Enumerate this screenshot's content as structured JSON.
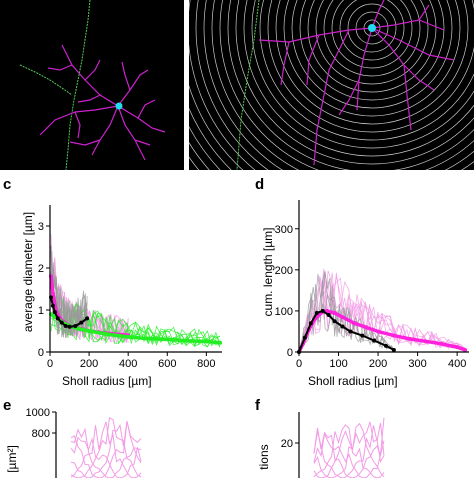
{
  "panels": {
    "c": {
      "letter": "c",
      "xlabel": "Sholl radius [µm]",
      "ylabel": "average diameter [µm]"
    },
    "d": {
      "letter": "d",
      "xlabel": "Sholl radius [µm]",
      "ylabel": "cum. length [µm]"
    },
    "e": {
      "letter": "e",
      "ylabel_partial": "[µm²]"
    },
    "f": {
      "letter": "f",
      "ylabel_partial": "tions"
    }
  },
  "colors": {
    "magenta": "#ff22dd",
    "pink_light": "#f39be6",
    "green": "#22ee22",
    "gray": "#999999",
    "black": "#000000",
    "cyan": "#22ddee",
    "dendrite": "#cc22cc",
    "axon": "#55cc55"
  },
  "chart_data": [
    {
      "id": "c",
      "type": "line",
      "xlabel": "Sholl radius [µm]",
      "ylabel": "average diameter [µm]",
      "xlim": [
        0,
        880
      ],
      "ylim": [
        0,
        3.5
      ],
      "xticks": [
        0,
        200,
        400,
        600,
        800
      ],
      "yticks": [
        0,
        1,
        2,
        3
      ],
      "series": [
        {
          "color": "magenta",
          "x": [
            5,
            15,
            30,
            50,
            75,
            100,
            130,
            160,
            200,
            250,
            300,
            350,
            400
          ],
          "y": [
            1.8,
            1.4,
            1.0,
            0.8,
            0.7,
            0.62,
            0.58,
            0.55,
            0.5,
            0.47,
            0.44,
            0.42,
            0.4
          ]
        },
        {
          "color": "green",
          "x": [
            5,
            20,
            40,
            60,
            100,
            150,
            200,
            300,
            400,
            500,
            600,
            700,
            800,
            870
          ],
          "y": [
            0.9,
            0.85,
            0.8,
            0.72,
            0.62,
            0.55,
            0.5,
            0.42,
            0.36,
            0.32,
            0.3,
            0.27,
            0.25,
            0.22
          ]
        },
        {
          "color": "black",
          "x": [
            5,
            15,
            25,
            40,
            60,
            80,
            100,
            130,
            160,
            190
          ],
          "y": [
            1.3,
            1.1,
            0.95,
            0.8,
            0.7,
            0.62,
            0.6,
            0.62,
            0.7,
            0.8
          ]
        }
      ]
    },
    {
      "id": "d",
      "type": "line",
      "xlabel": "Sholl radius [µm]",
      "ylabel": "cum. length [µm]",
      "xlim": [
        0,
        430
      ],
      "ylim": [
        0,
        370
      ],
      "xticks": [
        0,
        100,
        200,
        300,
        400
      ],
      "yticks": [
        0,
        100,
        200,
        300
      ],
      "series": [
        {
          "color": "magenta",
          "x": [
            0,
            10,
            25,
            40,
            55,
            70,
            90,
            110,
            140,
            170,
            200,
            240,
            280,
            320,
            360,
            400,
            420
          ],
          "y": [
            0,
            20,
            55,
            80,
            95,
            100,
            95,
            85,
            70,
            60,
            50,
            40,
            32,
            26,
            20,
            12,
            5
          ]
        },
        {
          "color": "black",
          "x": [
            0,
            15,
            30,
            45,
            60,
            75,
            90,
            110,
            130,
            160,
            190,
            220,
            240
          ],
          "y": [
            0,
            35,
            70,
            95,
            100,
            90,
            75,
            62,
            50,
            40,
            28,
            15,
            5
          ]
        }
      ]
    },
    {
      "id": "e",
      "type": "line",
      "ylabel": "[µm²]",
      "ylim": [
        600,
        1000
      ],
      "yticks": [
        800,
        1000
      ]
    },
    {
      "id": "f",
      "type": "line",
      "ylabel": "tions",
      "ylim": [
        15,
        25
      ],
      "yticks": [
        20
      ]
    }
  ]
}
